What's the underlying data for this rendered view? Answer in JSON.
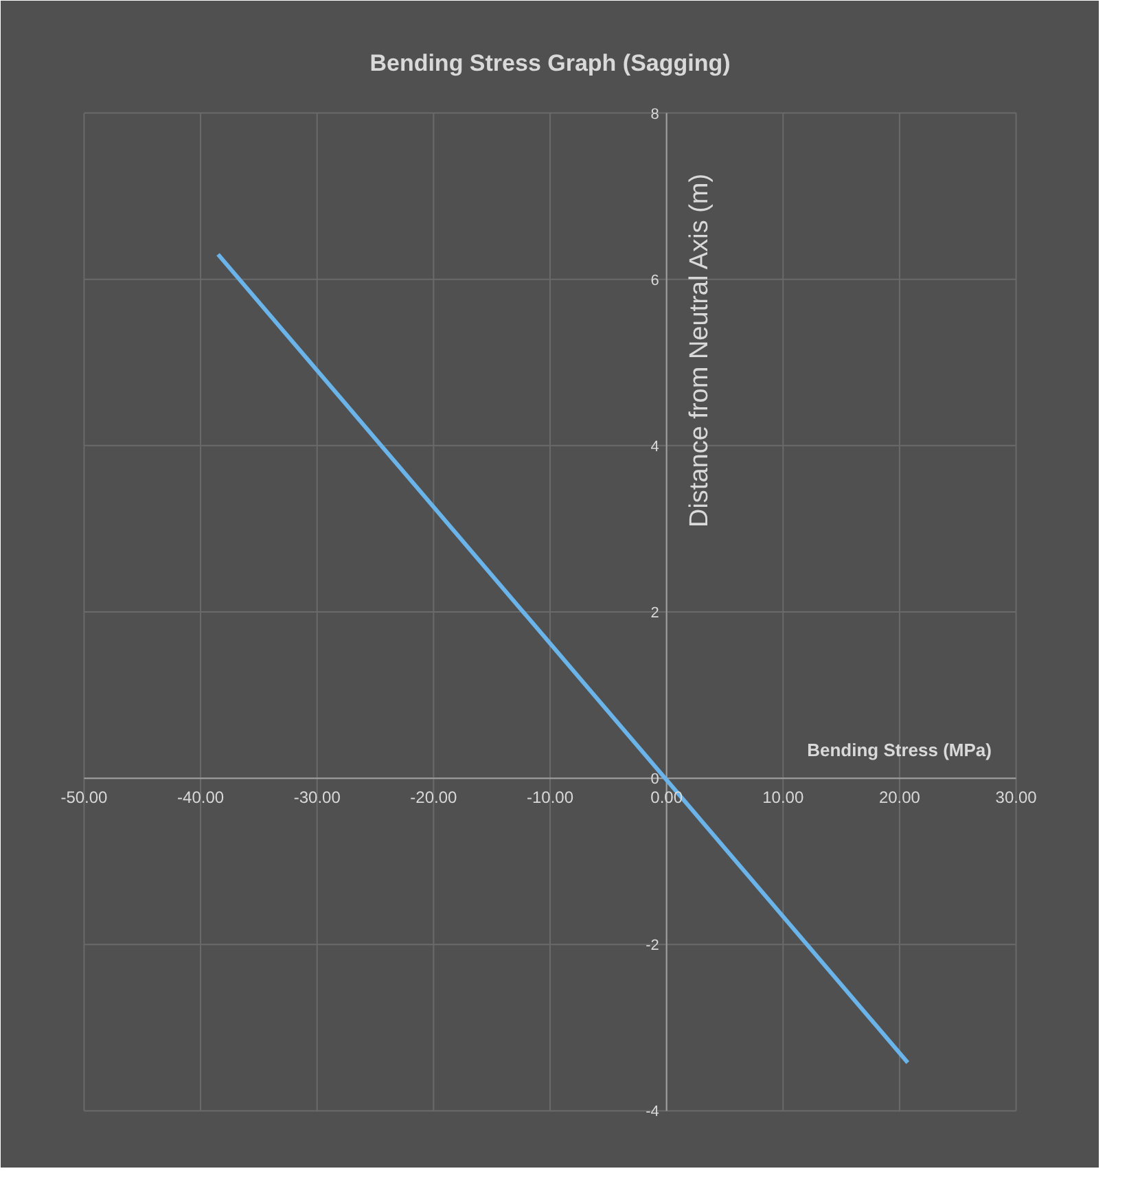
{
  "chart_data": {
    "type": "line",
    "title": "Bending Stress Graph (Sagging)",
    "xlabel": "Bending Stress (MPa)",
    "ylabel": "Distance from Neutral Axis (m)",
    "series": [
      {
        "color": "#6ab4ea",
        "x": [
          -38.5,
          20.7
        ],
        "values": [
          6.3,
          -3.42
        ]
      }
    ],
    "xlim": [
      -50,
      30
    ],
    "ylim": [
      -4,
      8
    ],
    "xticks": [
      {
        "value": -50,
        "label": "-50.00"
      },
      {
        "value": -40,
        "label": "-40.00"
      },
      {
        "value": -30,
        "label": "-30.00"
      },
      {
        "value": -20,
        "label": "-20.00"
      },
      {
        "value": -10,
        "label": "-10.00"
      },
      {
        "value": 0,
        "label": "0.00"
      },
      {
        "value": 10,
        "label": "10.00"
      },
      {
        "value": 20,
        "label": "20.00"
      },
      {
        "value": 30,
        "label": "30.00"
      }
    ],
    "yticks": [
      -4,
      -2,
      0,
      2,
      4,
      6,
      8
    ],
    "grid": true
  }
}
